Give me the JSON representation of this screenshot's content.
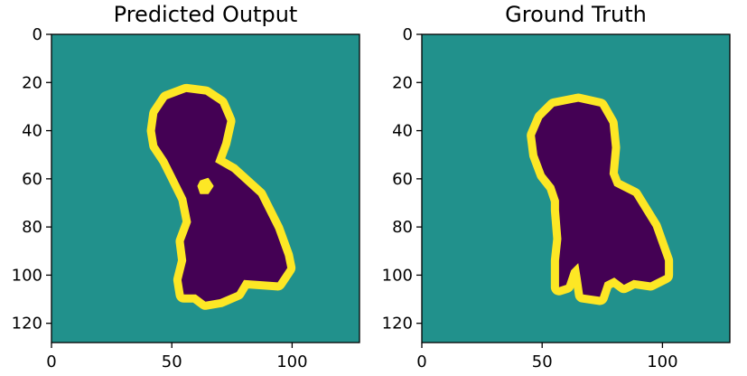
{
  "chart_data": [
    {
      "type": "heatmap",
      "title": "Predicted Output",
      "xlim": [
        0,
        128
      ],
      "ylim": [
        128,
        0
      ],
      "xticks": [
        0,
        50,
        100
      ],
      "yticks": [
        0,
        20,
        40,
        60,
        80,
        100,
        120
      ],
      "xticklabels": [
        "0",
        "50",
        "100"
      ],
      "yticklabels": [
        "0",
        "20",
        "40",
        "60",
        "80",
        "100",
        "120"
      ],
      "colormap": "viridis",
      "classes": [
        {
          "value": 0,
          "color": "#440154",
          "region": "object"
        },
        {
          "value": 1,
          "color": "#21918c",
          "region": "background"
        },
        {
          "value": 2,
          "color": "#fde725",
          "region": "boundary"
        }
      ],
      "object_outline": [
        [
          44,
          33
        ],
        [
          48,
          27
        ],
        [
          56,
          24
        ],
        [
          64,
          25
        ],
        [
          70,
          29
        ],
        [
          73,
          36
        ],
        [
          71,
          45
        ],
        [
          68,
          53
        ],
        [
          75,
          57
        ],
        [
          86,
          67
        ],
        [
          93,
          81
        ],
        [
          97,
          92
        ],
        [
          98,
          97
        ],
        [
          94,
          103
        ],
        [
          80,
          102
        ],
        [
          77,
          107
        ],
        [
          70,
          110
        ],
        [
          64,
          111
        ],
        [
          60,
          108
        ],
        [
          55,
          108
        ],
        [
          54,
          102
        ],
        [
          56,
          94
        ],
        [
          55,
          86
        ],
        [
          58,
          78
        ],
        [
          56,
          68
        ],
        [
          51,
          58
        ],
        [
          48,
          52
        ],
        [
          44,
          46
        ],
        [
          43,
          40
        ]
      ],
      "hole_outline": [
        [
          62,
          61
        ],
        [
          65,
          60
        ],
        [
          67,
          63
        ],
        [
          65,
          66
        ],
        [
          62,
          66
        ],
        [
          61,
          63
        ]
      ],
      "grid": false
    },
    {
      "type": "heatmap",
      "title": "Ground Truth",
      "xlim": [
        0,
        128
      ],
      "ylim": [
        128,
        0
      ],
      "xticks": [
        0,
        50,
        100
      ],
      "yticks": [
        0,
        20,
        40,
        60,
        80,
        100,
        120
      ],
      "xticklabels": [
        "0",
        "50",
        "100"
      ],
      "yticklabels": [
        "0",
        "20",
        "40",
        "60",
        "80",
        "100",
        "120"
      ],
      "colormap": "viridis",
      "classes": [
        {
          "value": 0,
          "color": "#440154",
          "region": "object"
        },
        {
          "value": 1,
          "color": "#21918c",
          "region": "background"
        },
        {
          "value": 2,
          "color": "#fde725",
          "region": "boundary"
        }
      ],
      "object_outline": [
        [
          50,
          35
        ],
        [
          55,
          30
        ],
        [
          65,
          28
        ],
        [
          74,
          30
        ],
        [
          78,
          37
        ],
        [
          79,
          47
        ],
        [
          78,
          58
        ],
        [
          80,
          63
        ],
        [
          88,
          67
        ],
        [
          96,
          80
        ],
        [
          101,
          94
        ],
        [
          101,
          100
        ],
        [
          95,
          103
        ],
        [
          88,
          102
        ],
        [
          84,
          104
        ],
        [
          80,
          101
        ],
        [
          76,
          103
        ],
        [
          74,
          109
        ],
        [
          67,
          108
        ],
        [
          66,
          101
        ],
        [
          65,
          95
        ],
        [
          62,
          98
        ],
        [
          60,
          104
        ],
        [
          57,
          105
        ],
        [
          57,
          94
        ],
        [
          58,
          85
        ],
        [
          57,
          73
        ],
        [
          57,
          69
        ],
        [
          55,
          63
        ],
        [
          51,
          58
        ],
        [
          48,
          50
        ],
        [
          47,
          42
        ]
      ],
      "hole_outline": [],
      "grid": false
    }
  ]
}
